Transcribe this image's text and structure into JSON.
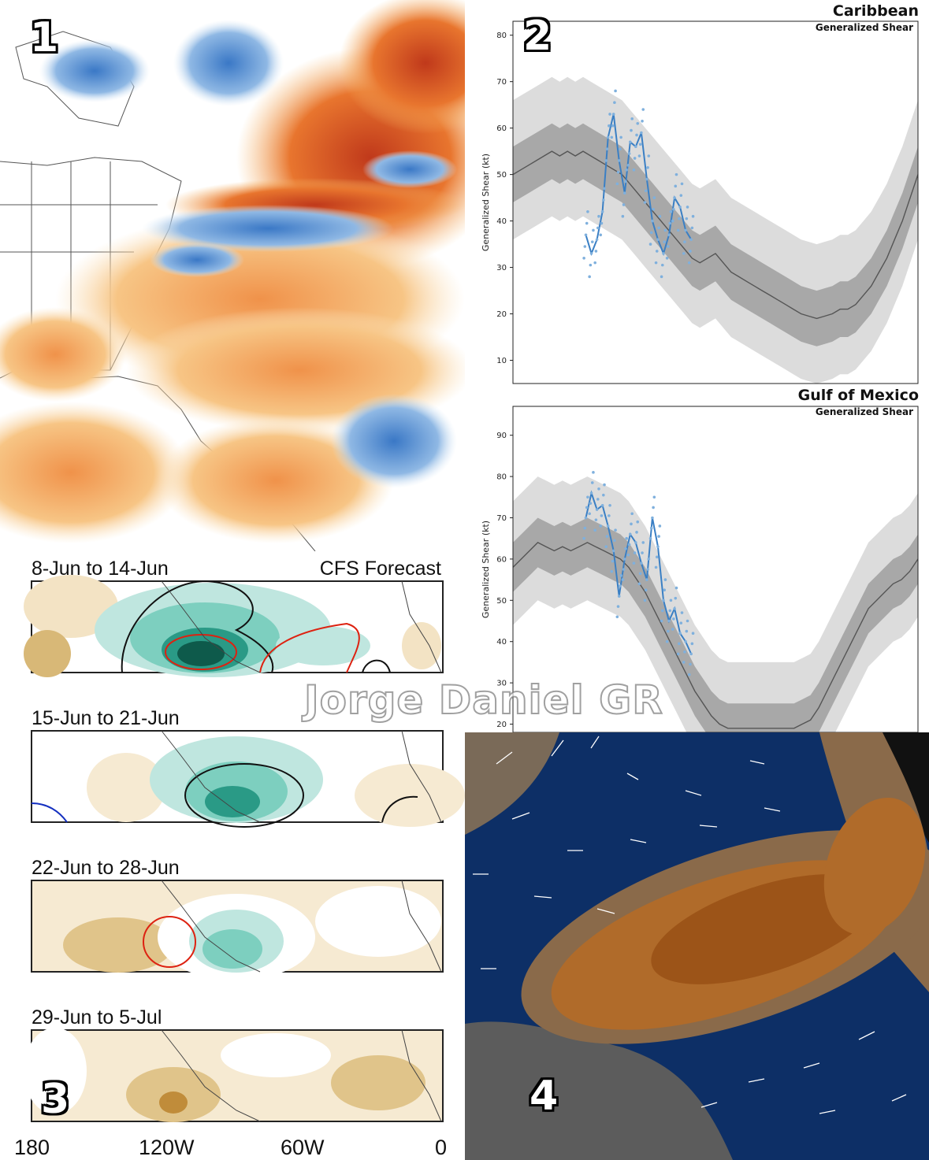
{
  "panels": {
    "p1": {
      "badge": "1",
      "name": "sea-surface-temperature-anomaly-map"
    },
    "p2": {
      "badge": "2",
      "charts": [
        {
          "region": "Caribbean",
          "subtitle": "Generalized Shear",
          "ylabel": "Generalized Shear (kt)"
        },
        {
          "region": "Gulf of Mexico",
          "subtitle": "Generalized Shear",
          "ylabel": "Generalized Shear (kt)"
        }
      ]
    },
    "p3": {
      "badge": "3",
      "forecast_label": "CFS Forecast",
      "weeks": [
        "8-Jun to 14-Jun",
        "15-Jun to 21-Jun",
        "22-Jun to 28-Jun",
        "29-Jun to 5-Jul"
      ],
      "lon_labels": [
        "180",
        "120W",
        "60W",
        "0"
      ]
    },
    "p4": {
      "badge": "4",
      "name": "saharan-dust-forecast-map"
    }
  },
  "watermark": "Jorge Daniel GR",
  "chart_data": [
    {
      "type": "line",
      "title": "Caribbean",
      "subtitle": "Generalized Shear",
      "ylabel": "Generalized Shear (kt)",
      "ylim": [
        5,
        83
      ],
      "yticks": [
        10,
        20,
        30,
        40,
        50,
        60,
        70,
        80
      ],
      "series": [
        {
          "values": [
            50,
            51,
            52,
            53,
            54,
            55,
            54,
            55,
            54,
            55,
            54,
            53,
            52,
            51,
            50,
            48,
            46,
            44,
            42,
            40,
            38,
            36,
            34,
            32,
            31,
            32,
            33,
            31,
            29,
            28,
            27,
            26,
            25,
            24,
            23,
            22,
            21,
            20,
            19.5,
            19,
            19.5,
            20,
            21,
            21,
            22,
            24,
            26,
            29,
            32,
            36,
            40,
            45,
            50
          ]
        },
        {
          "values": [
            37,
            33,
            36,
            42,
            58,
            63,
            53,
            46,
            57,
            56,
            59,
            49,
            40,
            36,
            33,
            37,
            45,
            43,
            38,
            36
          ]
        }
      ],
      "colors": {
        "climatology": "#555555",
        "forecast": "#3a7fc4",
        "band_inner": "#a8a8a8",
        "band_outer": "#dcdcdc"
      },
      "grid": false
    },
    {
      "type": "line",
      "title": "Gulf of Mexico",
      "subtitle": "Generalized Shear",
      "ylabel": "Generalized Shear (kt)",
      "ylim": [
        18,
        97
      ],
      "yticks": [
        20,
        30,
        40,
        50,
        60,
        70,
        80,
        90
      ],
      "series": [
        {
          "values": [
            58,
            60,
            62,
            64,
            63,
            62,
            63,
            62,
            63,
            64,
            63,
            62,
            61,
            60,
            58,
            55,
            52,
            48,
            44,
            40,
            36,
            32,
            28,
            25,
            22,
            20,
            19,
            19,
            19,
            19,
            19,
            19,
            19,
            19,
            19,
            20,
            21,
            24,
            28,
            32,
            36,
            40,
            44,
            48,
            50,
            52,
            54,
            55,
            57,
            60
          ]
        },
        {
          "values": [
            70,
            76,
            72,
            73,
            68,
            62,
            51,
            60,
            66,
            64,
            59,
            55,
            70,
            63,
            50,
            45,
            48,
            42,
            40,
            37
          ]
        }
      ],
      "colors": {
        "climatology": "#555555",
        "forecast": "#3a7fc4",
        "band_inner": "#a8a8a8",
        "band_outer": "#dcdcdc"
      },
      "grid": false
    }
  ]
}
